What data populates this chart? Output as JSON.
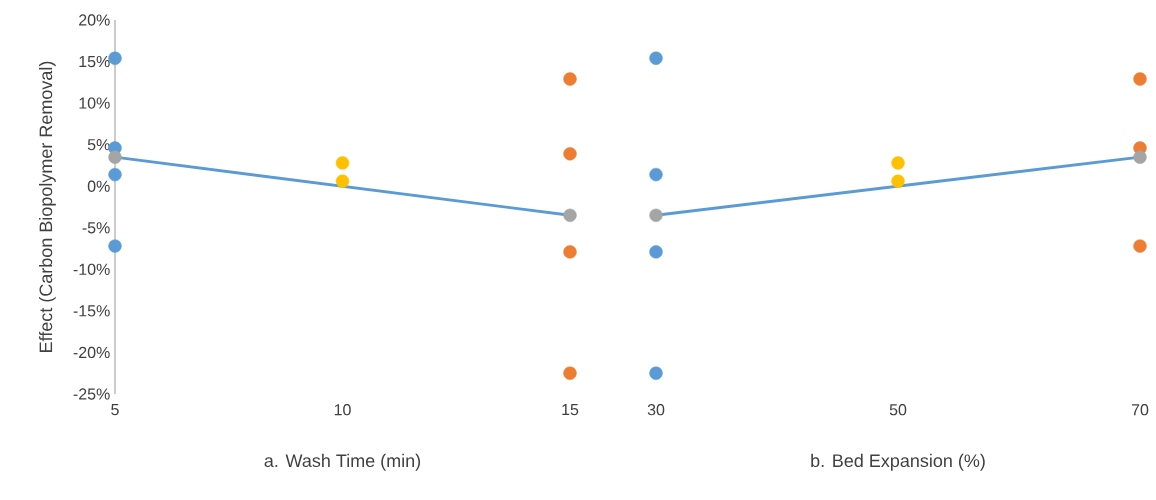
{
  "chart_data": [
    {
      "type": "scatter",
      "xlabel": "a. Wash Time (min)",
      "ylabel": "Effect (Carbon Biopolymer Removal)",
      "xlim": [
        5,
        15
      ],
      "xticks": [
        5,
        10,
        15
      ],
      "ylim": [
        -25,
        20
      ],
      "yticks": [
        {
          "value": -25,
          "label": "-25%"
        },
        {
          "value": -20,
          "label": "-20%"
        },
        {
          "value": -15,
          "label": "-15%"
        },
        {
          "value": -10,
          "label": "-10%"
        },
        {
          "value": -5,
          "label": "-5%"
        },
        {
          "value": 0,
          "label": "0%"
        },
        {
          "value": 5,
          "label": "5%"
        },
        {
          "value": 10,
          "label": "10%"
        },
        {
          "value": 15,
          "label": "15%"
        },
        {
          "value": 20,
          "label": "20%"
        }
      ],
      "grid": false,
      "series": [
        {
          "type": "line",
          "marker": "none",
          "color": "#5b9bd5",
          "x": [
            5,
            15
          ],
          "values": [
            3.5,
            -3.5
          ]
        },
        {
          "marker": "circle",
          "color": "#5b9bd5",
          "x": [
            5,
            5,
            5,
            5
          ],
          "values": [
            15.4,
            4.6,
            1.4,
            -7.2
          ]
        },
        {
          "marker": "circle",
          "color": "#ed7d31",
          "x": [
            15,
            15,
            15,
            15
          ],
          "values": [
            12.9,
            3.9,
            -7.9,
            -22.5
          ]
        },
        {
          "marker": "circle",
          "color": "#a5a5a5",
          "x": [
            5,
            15
          ],
          "values": [
            3.5,
            -3.5
          ]
        },
        {
          "marker": "circle",
          "color": "#ffc000",
          "x": [
            10,
            10
          ],
          "values": [
            2.8,
            0.6
          ]
        }
      ]
    },
    {
      "type": "scatter",
      "xlabel": "b. Bed Expansion (%)",
      "xlim": [
        30,
        70
      ],
      "xticks": [
        30,
        50,
        70
      ],
      "ylim": [
        -25,
        20
      ],
      "tick_labels": "x",
      "grid": false,
      "series": [
        {
          "type": "line",
          "marker": "none",
          "color": "#5b9bd5",
          "x": [
            30,
            70
          ],
          "values": [
            -3.5,
            3.5
          ]
        },
        {
          "marker": "circle",
          "color": "#5b9bd5",
          "x": [
            30,
            30,
            30,
            30
          ],
          "values": [
            15.4,
            1.4,
            -7.9,
            -22.5
          ]
        },
        {
          "marker": "circle",
          "color": "#ed7d31",
          "x": [
            70,
            70,
            70
          ],
          "values": [
            12.9,
            4.6,
            -7.2
          ]
        },
        {
          "marker": "circle",
          "color": "#a5a5a5",
          "x": [
            30,
            70
          ],
          "values": [
            -3.5,
            3.5
          ]
        },
        {
          "marker": "circle",
          "color": "#ffc000",
          "x": [
            50,
            50
          ],
          "values": [
            2.8,
            0.6
          ]
        }
      ]
    }
  ]
}
